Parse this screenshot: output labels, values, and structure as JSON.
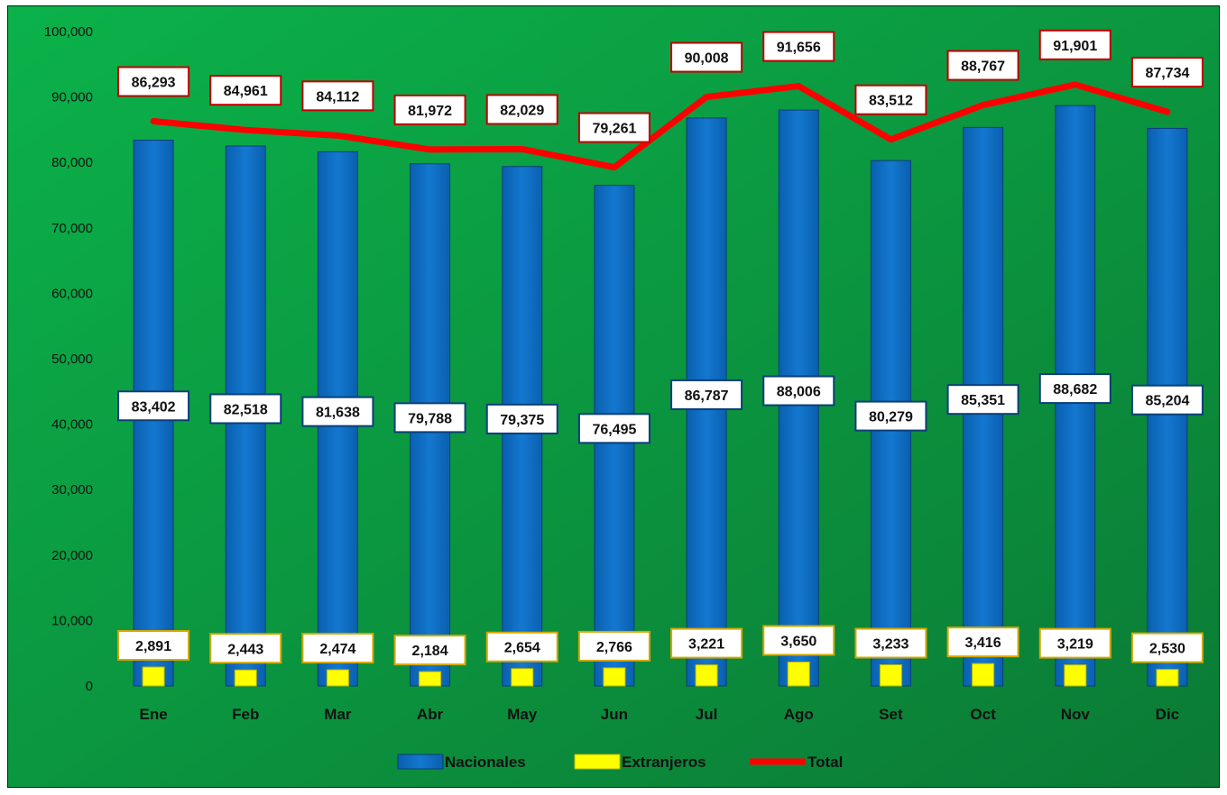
{
  "chart_data": {
    "type": "bar",
    "categories": [
      "Ene",
      "Feb",
      "Mar",
      "Abr",
      "May",
      "Jun",
      "Jul",
      "Ago",
      "Set",
      "Oct",
      "Nov",
      "Dic"
    ],
    "series": [
      {
        "name": "Nacionales",
        "type": "bar",
        "color": "#0a6fc4",
        "values": [
          83402,
          82518,
          81638,
          79788,
          79375,
          76495,
          86787,
          88006,
          80279,
          85351,
          88682,
          85204
        ],
        "labels": [
          "83,402",
          "82,518",
          "81,638",
          "79,788",
          "79,375",
          "76,495",
          "86,787",
          "88,006",
          "80,279",
          "85,351",
          "88,682",
          "85,204"
        ]
      },
      {
        "name": "Extranjeros",
        "type": "bar",
        "color": "#ffff00",
        "values": [
          2891,
          2443,
          2474,
          2184,
          2654,
          2766,
          3221,
          3650,
          3233,
          3416,
          3219,
          2530
        ],
        "labels": [
          "2,891",
          "2,443",
          "2,474",
          "2,184",
          "2,654",
          "2,766",
          "3,221",
          "3,650",
          "3,233",
          "3,416",
          "3,219",
          "2,530"
        ]
      },
      {
        "name": "Total",
        "type": "line",
        "color": "#ff0000",
        "values": [
          86293,
          84961,
          84112,
          81972,
          82029,
          79261,
          90008,
          91656,
          83512,
          88767,
          91901,
          87734
        ],
        "labels": [
          "86,293",
          "84,961",
          "84,112",
          "81,972",
          "82,029",
          "79,261",
          "90,008",
          "91,656",
          "83,512",
          "88,767",
          "91,901",
          "87,734"
        ]
      }
    ],
    "title": "",
    "xlabel": "",
    "ylabel": "",
    "ylim": [
      0,
      100000
    ],
    "yticks": [
      "0",
      "10,000",
      "20,000",
      "30,000",
      "40,000",
      "50,000",
      "60,000",
      "70,000",
      "80,000",
      "90,000",
      "100,000"
    ],
    "grid": false,
    "legend": "bottom",
    "background": {
      "gradient_start": "#0bb24a",
      "gradient_end": "#0b7a35"
    }
  }
}
